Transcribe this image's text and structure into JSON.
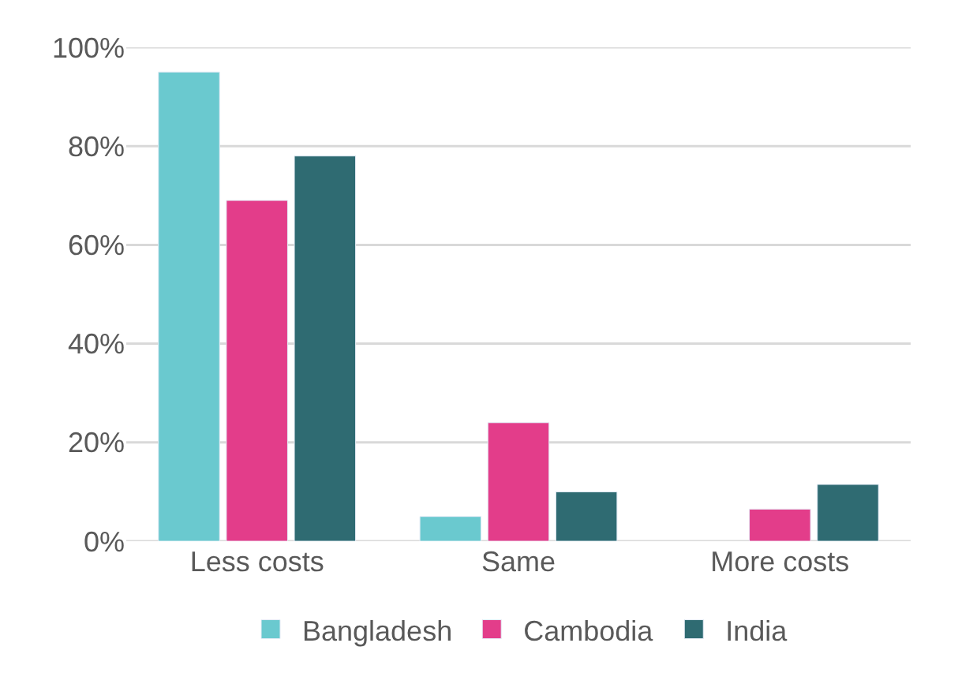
{
  "chart_data": {
    "type": "bar",
    "categories": [
      "Less costs",
      "Same",
      "More costs"
    ],
    "series": [
      {
        "name": "Bangladesh",
        "color": "#6ac9cf",
        "values": [
          95,
          5,
          null
        ]
      },
      {
        "name": "Cambodia",
        "color": "#e33d8a",
        "values": [
          69,
          24,
          6.5
        ]
      },
      {
        "name": "India",
        "color": "#2f6b72",
        "values": [
          78,
          10,
          11.5
        ]
      }
    ],
    "ylim": [
      0,
      100
    ],
    "yticks": [
      {
        "value": 0,
        "label": "0%"
      },
      {
        "value": 20,
        "label": "20%"
      },
      {
        "value": 40,
        "label": "40%"
      },
      {
        "value": 60,
        "label": "60%"
      },
      {
        "value": 80,
        "label": "80%"
      },
      {
        "value": 100,
        "label": "100%"
      }
    ],
    "grid": "y",
    "legend": "bottom"
  }
}
